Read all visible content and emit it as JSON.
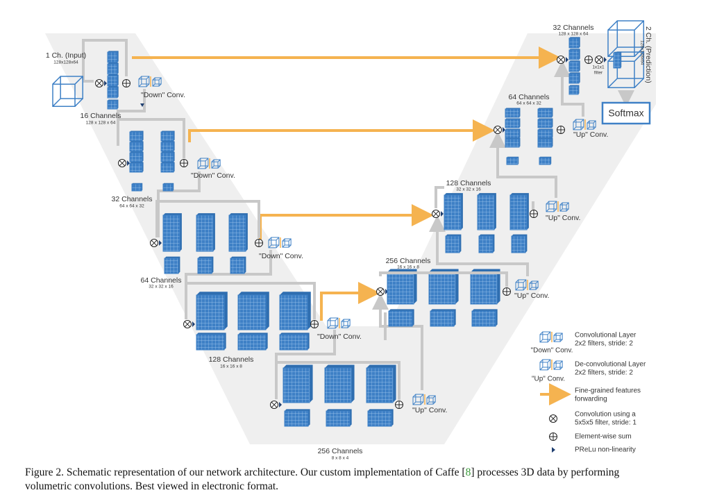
{
  "input": {
    "label": "1 Ch. (Input)",
    "size": "128x128x64"
  },
  "encoder": [
    {
      "channels": "16 Channels",
      "size": "128 x 128 x 64",
      "op": "\"Down\" Conv."
    },
    {
      "channels": "32 Channels",
      "size": "64 x 64 x 32",
      "op": "\"Down\" Conv."
    },
    {
      "channels": "64 Channels",
      "size": "32 x 32 x 16",
      "op": "\"Down\" Conv."
    },
    {
      "channels": "128 Channels",
      "size": "16 x 16 x 8",
      "op": "\"Down\" Conv."
    }
  ],
  "bottom": {
    "channels": "256 Channels",
    "size": "8 x 8 x 4",
    "op": "\"Up\" Conv."
  },
  "decoder": [
    {
      "channels": "256 Channels",
      "size": "16 x 16 x 8",
      "op": "\"Up\" Conv."
    },
    {
      "channels": "128 Channels",
      "size": "32 x 32 x 16",
      "op": "\"Up\" Conv."
    },
    {
      "channels": "64 Channels",
      "size": "64 x 64 x 32",
      "op": "\"Up\" Conv."
    },
    {
      "channels": "32 Channels",
      "size": "128 x 128 x 64"
    }
  ],
  "output": {
    "label": "2 Ch. (Prediction)",
    "size": "128x128x64",
    "filter": [
      "1x1x1",
      "filter"
    ],
    "softmax": "Softmax"
  },
  "legend": [
    {
      "lines": [
        "Convolutional Layer",
        "2x2 filters, stride: 2"
      ],
      "tag": "\"Down\" Conv."
    },
    {
      "lines": [
        "De-convolutional Layer",
        "2x2 filters, stride: 2"
      ],
      "tag": "\"Up\" Conv."
    },
    {
      "lines": [
        "Fine-grained features",
        "forwarding"
      ]
    },
    {
      "lines": [
        "Convolution using a",
        "5x5x5 filter, stride: 1"
      ]
    },
    {
      "lines": [
        "Element-wise sum"
      ]
    },
    {
      "lines": [
        "PReLu non-linearity"
      ]
    }
  ],
  "caption": {
    "before": "Figure 2. Schematic representation of our network architecture. Our custom implementation of Caffe [",
    "ref": "8",
    "after": "] processes 3D data by performing",
    "line2": "volumetric convolutions. Best viewed in electronic format."
  }
}
